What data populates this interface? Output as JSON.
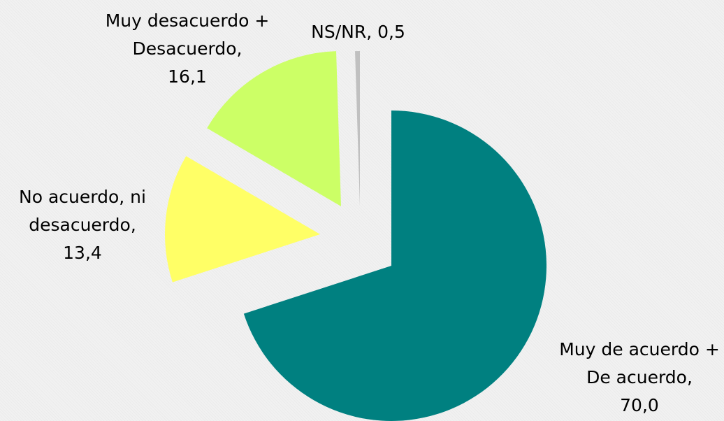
{
  "chart_data": {
    "type": "pie",
    "categories": [
      "Muy de acuerdo + De acuerdo",
      "No acuerdo, ni desacuerdo",
      "Muy desacuerdo + Desacuerdo",
      "NS/NR"
    ],
    "values": [
      70.0,
      13.4,
      16.1,
      0.5
    ],
    "value_labels": [
      "70,0",
      "13,4",
      "16,1",
      "0,5"
    ],
    "colors": [
      "#008080",
      "#ffff66",
      "#ccff66",
      "#c0c0c0"
    ]
  }
}
